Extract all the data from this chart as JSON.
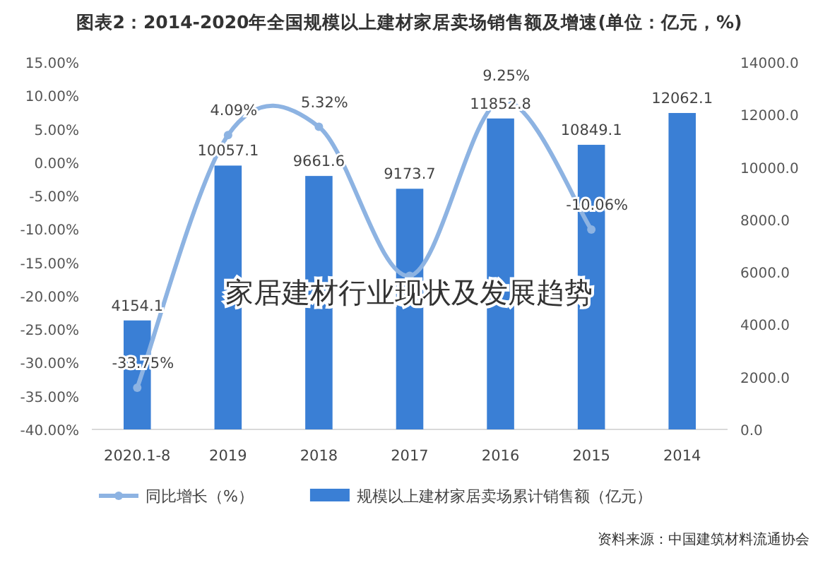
{
  "chart_data": {
    "type": "bar",
    "title": "图表2：2014-2020年全国规模以上建材家居卖场销售额及增速(单位：亿元，%)",
    "categories": [
      "2020.1-8",
      "2019",
      "2018",
      "2017",
      "2016",
      "2015",
      "2014"
    ],
    "series": [
      {
        "name": "规模以上建材家居卖场累计销售额（亿元）",
        "axis": "y2",
        "color": "#3a7fd5",
        "values": [
          4154.1,
          10057.1,
          9661.6,
          9173.7,
          11852.8,
          10849.1,
          12062.1
        ],
        "value_labels": [
          "4154.1",
          "10057.1",
          "9661.6",
          "9173.7",
          "11852.8",
          "10849.1",
          "12062.1"
        ]
      },
      {
        "name": "同比增长（%）",
        "type": "line",
        "axis": "y",
        "color": "#8db3e2",
        "marker": "circle",
        "values": [
          -33.75,
          4.09,
          5.32,
          -17,
          9.25,
          -10.06,
          null
        ],
        "value_labels": [
          "-33.75%",
          "4.09%",
          "5.32%",
          null,
          "9.25%",
          "-10.06%",
          null
        ]
      }
    ],
    "ylim": [
      -40,
      15
    ],
    "yticks": [
      {
        "value": 15,
        "label": "15.00%"
      },
      {
        "value": 10,
        "label": "10.00%"
      },
      {
        "value": 5,
        "label": "5.00%"
      },
      {
        "value": 0,
        "label": "0.00%"
      },
      {
        "value": -5,
        "label": "-5.00%"
      },
      {
        "value": -10,
        "label": "-10.00%"
      },
      {
        "value": -15,
        "label": "-15.00%"
      },
      {
        "value": -20,
        "label": "-20.00%"
      },
      {
        "value": -25,
        "label": "-25.00%"
      },
      {
        "value": -30,
        "label": "-30.00%"
      },
      {
        "value": -35,
        "label": "-35.00%"
      },
      {
        "value": -40,
        "label": "-40.00%"
      }
    ],
    "y2lim": [
      0,
      14000
    ],
    "y2ticks": [
      {
        "value": 0,
        "label": "0.0"
      },
      {
        "value": 2000,
        "label": "2000.0"
      },
      {
        "value": 4000,
        "label": "4000.0"
      },
      {
        "value": 6000,
        "label": "6000.0"
      },
      {
        "value": 8000,
        "label": "8000.0"
      },
      {
        "value": 10000,
        "label": "10000.0"
      },
      {
        "value": 12000,
        "label": "12000.0"
      },
      {
        "value": 14000,
        "label": "14000.0"
      }
    ],
    "legend": "bottom",
    "grid": false,
    "annotations": [
      "家居建材行业现状及发展趋势",
      "资料来源：中国建筑材料流通协会"
    ]
  }
}
